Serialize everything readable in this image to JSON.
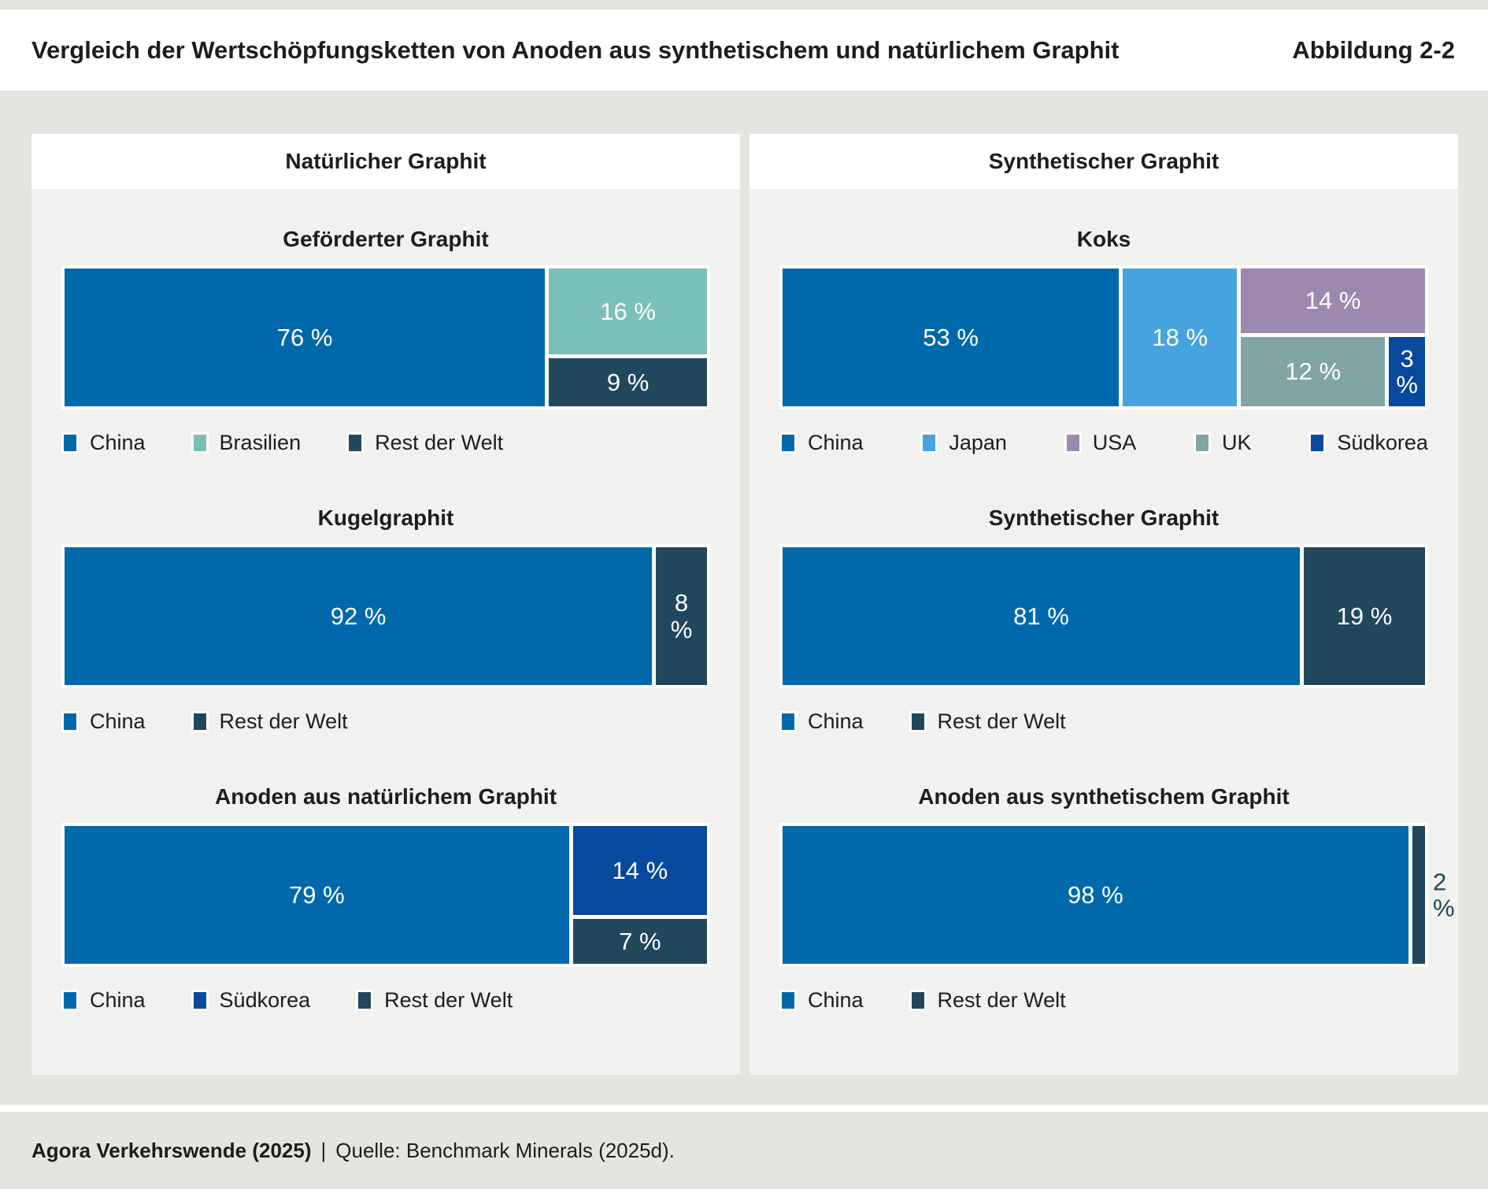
{
  "header": {
    "title": "Vergleich der Wertschöpfungsketten von Anoden aus synthetischem und natürlichem Graphit",
    "figure_label": "Abbildung 2-2"
  },
  "footer": {
    "source_bold": "Agora Verkehrswende (2025)",
    "separator": "|",
    "source_rest": "Quelle: Benchmark Minerals (2025d)."
  },
  "colors": {
    "china": "#0069ac",
    "brasilien": "#7bbfb9",
    "japan": "#47a3dd",
    "usa": "#9d89b0",
    "uk": "#81a5a5",
    "suedkorea": "#07499d",
    "rest_der_welt": "#21475c",
    "page_background": "#e3e5e0",
    "card_background": "#f1f1ef",
    "text_dark": "#1d1d1b"
  },
  "panels": [
    {
      "title": "Natürlicher Graphit"
    },
    {
      "title": "Synthetischer Graphit"
    }
  ],
  "chart_data": [
    {
      "panel": 0,
      "title": "Geförderter Graphit",
      "type": "treemap",
      "unit": "%",
      "segments": [
        {
          "label": "China",
          "value": 76,
          "color": "#0069ac"
        },
        {
          "label": "Brasilien",
          "value": 16,
          "color": "#7bbfb9"
        },
        {
          "label": "Rest der Welt",
          "value": 9,
          "color": "#21475c"
        }
      ],
      "layout": {
        "dir": "row",
        "children": [
          {
            "seg": 0
          },
          {
            "dir": "col",
            "children": [
              {
                "seg": 1
              },
              {
                "seg": 2
              }
            ]
          }
        ]
      }
    },
    {
      "panel": 0,
      "title": "Kugelgraphit",
      "type": "treemap",
      "unit": "%",
      "segments": [
        {
          "label": "China",
          "value": 92,
          "color": "#0069ac"
        },
        {
          "label": "Rest der Welt",
          "value": 8,
          "color": "#21475c",
          "stacked_label": true
        }
      ],
      "layout": {
        "dir": "row",
        "children": [
          {
            "seg": 0
          },
          {
            "seg": 1
          }
        ]
      }
    },
    {
      "panel": 0,
      "title": "Anoden aus natürlichem Graphit",
      "type": "treemap",
      "unit": "%",
      "segments": [
        {
          "label": "China",
          "value": 79,
          "color": "#0069ac"
        },
        {
          "label": "Südkorea",
          "value": 14,
          "color": "#07499d"
        },
        {
          "label": "Rest der Welt",
          "value": 7,
          "color": "#21475c"
        }
      ],
      "layout": {
        "dir": "row",
        "children": [
          {
            "seg": 0
          },
          {
            "dir": "col",
            "children": [
              {
                "seg": 1
              },
              {
                "seg": 2
              }
            ]
          }
        ]
      }
    },
    {
      "panel": 1,
      "title": "Koks",
      "type": "treemap",
      "unit": "%",
      "segments": [
        {
          "label": "China",
          "value": 53,
          "color": "#0069ac"
        },
        {
          "label": "Japan",
          "value": 18,
          "color": "#47a3dd"
        },
        {
          "label": "USA",
          "value": 14,
          "color": "#9d89b0"
        },
        {
          "label": "UK",
          "value": 12,
          "color": "#81a5a5"
        },
        {
          "label": "Südkorea",
          "value": 3,
          "color": "#07499d",
          "stacked_label": true
        }
      ],
      "layout": {
        "dir": "row",
        "children": [
          {
            "seg": 0
          },
          {
            "seg": 1
          },
          {
            "dir": "col",
            "children": [
              {
                "seg": 2
              },
              {
                "dir": "row",
                "children": [
                  {
                    "seg": 3
                  },
                  {
                    "seg": 4
                  }
                ]
              }
            ]
          }
        ]
      }
    },
    {
      "panel": 1,
      "title": "Synthetischer Graphit",
      "type": "treemap",
      "unit": "%",
      "segments": [
        {
          "label": "China",
          "value": 81,
          "color": "#0069ac"
        },
        {
          "label": "Rest der Welt",
          "value": 19,
          "color": "#21475c"
        }
      ],
      "layout": {
        "dir": "row",
        "children": [
          {
            "seg": 0
          },
          {
            "seg": 1
          }
        ]
      }
    },
    {
      "panel": 1,
      "title": "Anoden aus synthetischem Graphit",
      "type": "treemap",
      "unit": "%",
      "segments": [
        {
          "label": "China",
          "value": 98,
          "color": "#0069ac"
        },
        {
          "label": "Rest der Welt",
          "value": 2,
          "color": "#21475c",
          "stacked_label": true,
          "label_outside": true
        }
      ],
      "layout": {
        "dir": "row",
        "children": [
          {
            "seg": 0
          },
          {
            "seg": 1
          }
        ]
      }
    }
  ]
}
